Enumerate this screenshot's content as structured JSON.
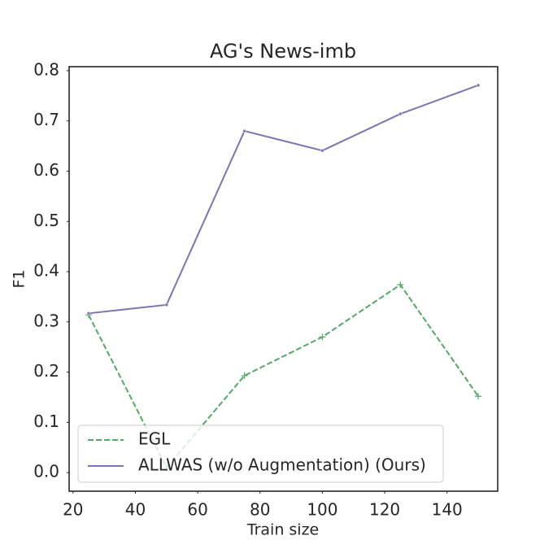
{
  "chart_data": {
    "type": "line",
    "title": "AG's News-imb",
    "xlabel": "Train size",
    "ylabel": "F1",
    "x": [
      25,
      50,
      75,
      100,
      125,
      150
    ],
    "series": [
      {
        "name": "EGL",
        "color": "#55a868",
        "linestyle": "dashed",
        "marker": "+",
        "values": [
          0.314,
          0.01,
          0.193,
          0.27,
          0.374,
          0.152
        ]
      },
      {
        "name": "ALLWAS (w/o Augmentation) (Ours)",
        "color": "#8172b3",
        "linestyle": "solid",
        "marker": "dot",
        "values": [
          0.317,
          0.334,
          0.68,
          0.641,
          0.714,
          0.771
        ]
      }
    ],
    "xlim": [
      18.75,
      156.25
    ],
    "ylim": [
      -0.037,
      0.808
    ],
    "xticks": [
      20,
      40,
      60,
      80,
      100,
      120,
      140
    ],
    "yticks": [
      {
        "value": 0,
        "label": "0.0"
      },
      0.1,
      0.2,
      0.3,
      0.4,
      0.5,
      0.6,
      0.7,
      0.8
    ],
    "legend": "lower left",
    "grid": false
  }
}
